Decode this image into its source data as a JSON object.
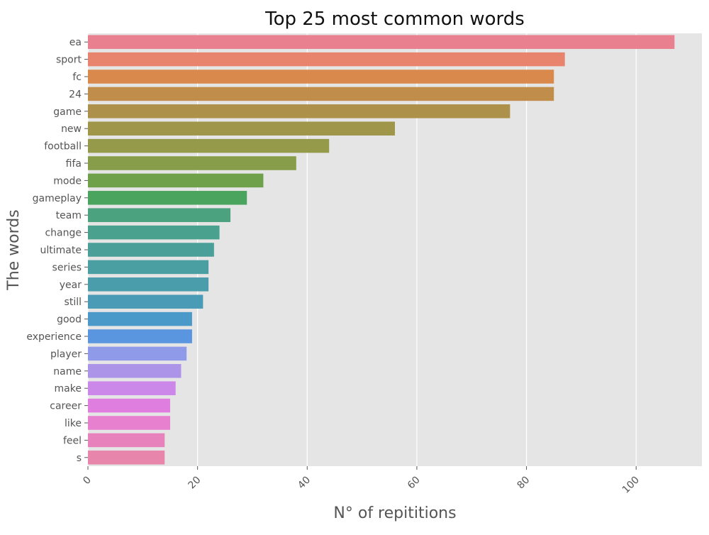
{
  "chart_data": {
    "type": "bar",
    "orientation": "horizontal",
    "title": "Top 25 most common words",
    "xlabel": "N° of repititions",
    "ylabel": "The words",
    "xlim": [
      0,
      112
    ],
    "xticks": [
      0,
      20,
      40,
      60,
      80,
      100
    ],
    "grid": true,
    "categories": [
      "ea",
      "sport",
      "fc",
      "24",
      "game",
      "new",
      "football",
      "fifa",
      "mode",
      "gameplay",
      "team",
      "change",
      "ultimate",
      "series",
      "year",
      "still",
      "good",
      "experience",
      "player",
      "name",
      "make",
      "career",
      "like",
      "feel",
      "s"
    ],
    "values": [
      107,
      87,
      85,
      85,
      77,
      56,
      44,
      38,
      32,
      29,
      26,
      24,
      23,
      22,
      22,
      21,
      19,
      19,
      18,
      17,
      16,
      15,
      15,
      14,
      14
    ],
    "colors": [
      "#e8808f",
      "#e8836e",
      "#d9894c",
      "#c08d4a",
      "#ad914a",
      "#a0964a",
      "#959a4a",
      "#879d4a",
      "#6fa14a",
      "#4aa45e",
      "#4aa27f",
      "#4aa18d",
      "#4aa098",
      "#4a9fa2",
      "#4a9dab",
      "#4a9bb5",
      "#4a99c8",
      "#5a95e0",
      "#8f9be8",
      "#ac94e8",
      "#cc88e8",
      "#e07ee0",
      "#e680cf",
      "#e882bd",
      "#e885aa"
    ],
    "background": "#e5e5e5"
  }
}
